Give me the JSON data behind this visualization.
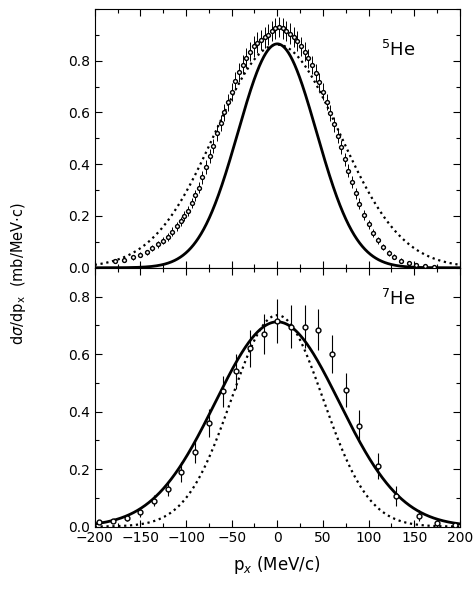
{
  "panel1_label": "$^5$He",
  "panel2_label": "$^7$He",
  "xlabel": "p$_{x}$ (MeV/c)",
  "xlim": [
    -200,
    200
  ],
  "panel1_ylim": [
    0.0,
    1.0
  ],
  "panel2_ylim": [
    0.0,
    0.9
  ],
  "panel1_yticks": [
    0.0,
    0.2,
    0.4,
    0.6,
    0.8
  ],
  "panel2_yticks": [
    0.0,
    0.2,
    0.4,
    0.6,
    0.8
  ],
  "xticks": [
    -200,
    -150,
    -100,
    -50,
    0,
    50,
    100,
    150,
    200
  ],
  "panel1_solid_sigma": 43.0,
  "panel1_solid_amp": 0.865,
  "panel1_dotted_sigma": 68.0,
  "panel1_dotted_amp": 0.862,
  "panel2_solid_sigma": 68.0,
  "panel2_solid_amp": 0.712,
  "panel2_dotted_sigma": 50.0,
  "panel2_dotted_amp": 0.735,
  "data1_x": [
    -178,
    -168,
    -158,
    -150,
    -143,
    -137,
    -131,
    -125,
    -120,
    -115,
    -110,
    -106,
    -102,
    -98,
    -94,
    -90,
    -86,
    -82,
    -78,
    -74,
    -70,
    -66,
    -62,
    -58,
    -54,
    -50,
    -46,
    -42,
    -38,
    -34,
    -30,
    -26,
    -22,
    -18,
    -14,
    -10,
    -6,
    -2,
    2,
    6,
    10,
    14,
    18,
    22,
    26,
    30,
    34,
    38,
    42,
    46,
    50,
    54,
    58,
    62,
    66,
    70,
    74,
    78,
    82,
    86,
    90,
    95,
    100,
    105,
    110,
    116,
    122,
    128,
    136,
    144,
    152,
    162,
    172
  ],
  "data1_y": [
    0.025,
    0.03,
    0.04,
    0.05,
    0.06,
    0.075,
    0.09,
    0.105,
    0.12,
    0.14,
    0.16,
    0.18,
    0.2,
    0.22,
    0.25,
    0.28,
    0.31,
    0.35,
    0.39,
    0.43,
    0.47,
    0.52,
    0.56,
    0.6,
    0.64,
    0.68,
    0.72,
    0.755,
    0.785,
    0.81,
    0.835,
    0.855,
    0.87,
    0.88,
    0.89,
    0.9,
    0.915,
    0.925,
    0.93,
    0.925,
    0.915,
    0.905,
    0.89,
    0.875,
    0.855,
    0.835,
    0.81,
    0.783,
    0.752,
    0.718,
    0.68,
    0.64,
    0.598,
    0.555,
    0.51,
    0.465,
    0.42,
    0.375,
    0.33,
    0.288,
    0.248,
    0.205,
    0.168,
    0.135,
    0.106,
    0.08,
    0.058,
    0.042,
    0.028,
    0.018,
    0.011,
    0.006,
    0.003
  ],
  "data1_yerr": [
    0.008,
    0.008,
    0.009,
    0.01,
    0.01,
    0.011,
    0.012,
    0.013,
    0.015,
    0.016,
    0.017,
    0.018,
    0.019,
    0.02,
    0.021,
    0.022,
    0.023,
    0.025,
    0.026,
    0.027,
    0.028,
    0.03,
    0.031,
    0.032,
    0.033,
    0.034,
    0.035,
    0.036,
    0.037,
    0.038,
    0.038,
    0.039,
    0.039,
    0.04,
    0.04,
    0.04,
    0.04,
    0.04,
    0.04,
    0.04,
    0.04,
    0.04,
    0.039,
    0.039,
    0.038,
    0.038,
    0.037,
    0.036,
    0.035,
    0.034,
    0.033,
    0.031,
    0.03,
    0.029,
    0.028,
    0.027,
    0.025,
    0.024,
    0.023,
    0.022,
    0.02,
    0.019,
    0.017,
    0.016,
    0.014,
    0.013,
    0.011,
    0.01,
    0.009,
    0.008,
    0.007,
    0.006,
    0.005
  ],
  "data2_x": [
    -195,
    -180,
    -165,
    -150,
    -135,
    -120,
    -105,
    -90,
    -75,
    -60,
    -45,
    -30,
    -15,
    0,
    15,
    30,
    45,
    60,
    75,
    90,
    110,
    130,
    155,
    175,
    195
  ],
  "data2_y": [
    0.015,
    0.02,
    0.03,
    0.05,
    0.09,
    0.13,
    0.19,
    0.26,
    0.36,
    0.47,
    0.54,
    0.62,
    0.67,
    0.715,
    0.695,
    0.695,
    0.685,
    0.6,
    0.475,
    0.35,
    0.21,
    0.105,
    0.038,
    0.014,
    0.004
  ],
  "data2_yerr": [
    0.005,
    0.007,
    0.01,
    0.015,
    0.02,
    0.025,
    0.035,
    0.04,
    0.05,
    0.055,
    0.06,
    0.065,
    0.07,
    0.075,
    0.075,
    0.075,
    0.07,
    0.065,
    0.06,
    0.055,
    0.045,
    0.035,
    0.02,
    0.012,
    0.007
  ],
  "background_color": "#ffffff"
}
